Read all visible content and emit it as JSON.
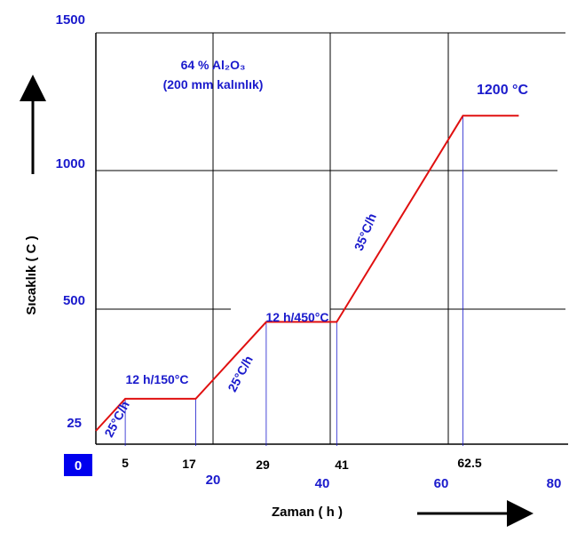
{
  "chart_data": {
    "type": "line",
    "title": "64 % Al₂O₃",
    "subtitle": "(200 mm kalınlık)",
    "xlabel": "Zaman ( h )",
    "ylabel": "Sıcaklık ( C )",
    "xlim": [
      0,
      80
    ],
    "ylim": [
      0,
      1500
    ],
    "grid": true,
    "series": [
      {
        "color": "#e01010",
        "x": [
          0,
          5,
          17,
          29,
          41,
          62.5,
          72
        ],
        "y": [
          25,
          150,
          150,
          450,
          450,
          1200,
          1200
        ]
      }
    ],
    "x_major_ticks": [
      "0",
      "20",
      "40",
      "60",
      "80"
    ],
    "x_point_labels": [
      "5",
      "17",
      "29",
      "41",
      "62.5"
    ],
    "y_ticks": [
      "25",
      "500",
      "1000",
      "1500"
    ],
    "annotations": {
      "seg1_rate": "25°C/h",
      "hold1": "12 h/150°C",
      "seg2_rate": "25°C/h",
      "hold2": "12 h/450°C",
      "seg3_rate": "35°C/h",
      "max_temp": "1200 °C"
    }
  }
}
